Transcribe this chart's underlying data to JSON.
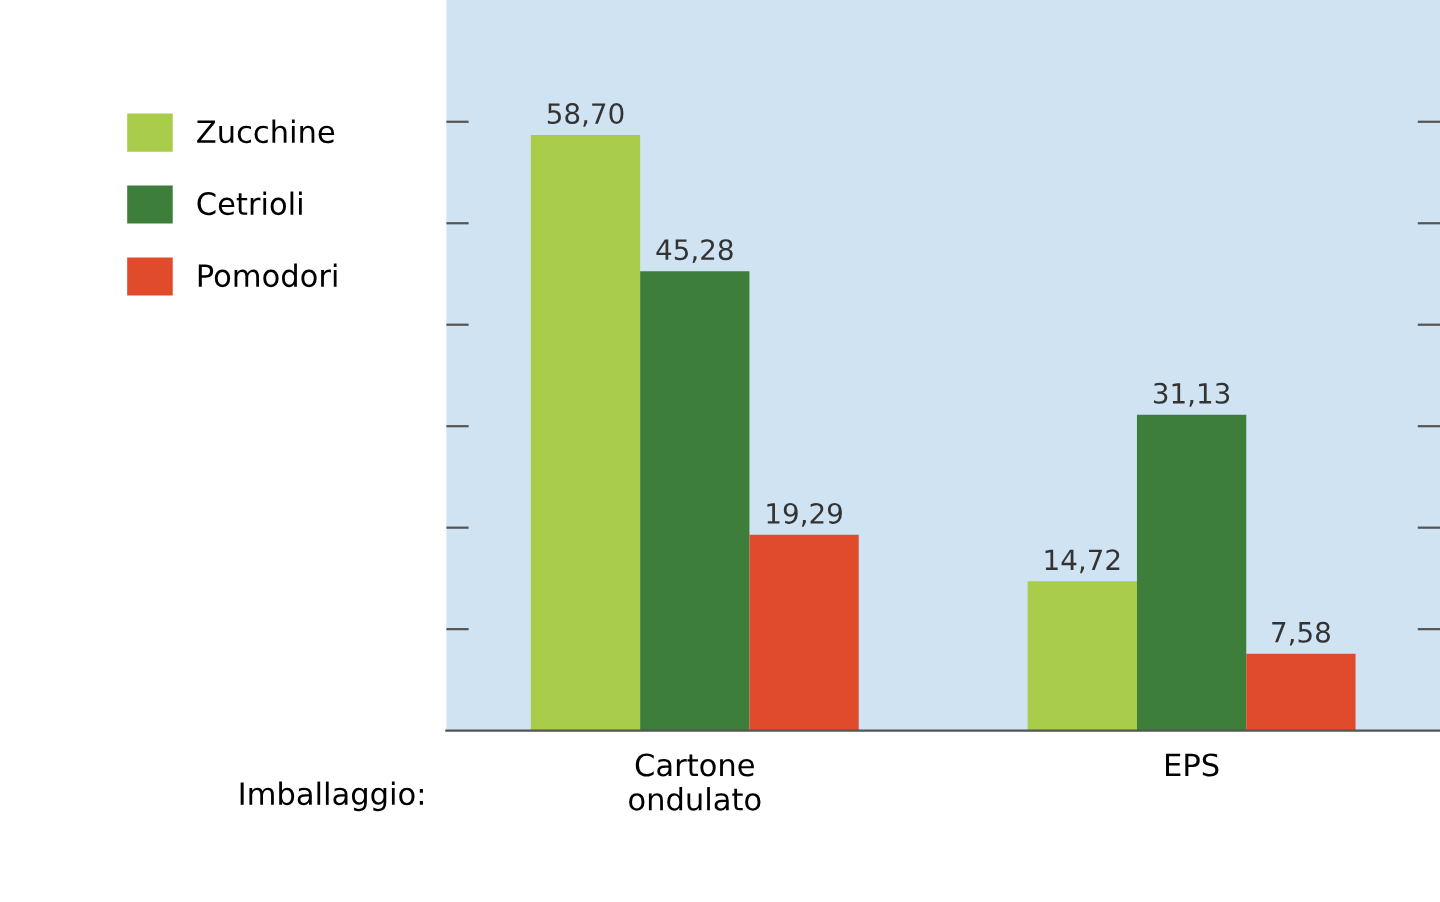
{
  "chart_data": {
    "type": "bar",
    "xlabel": "Imballaggio:",
    "categories": [
      "Cartone\nondulato",
      "EPS"
    ],
    "series": [
      {
        "name": "Zucchine",
        "color": "#a9cd4a",
        "values": [
          58.7,
          14.72
        ],
        "value_labels": [
          "58,70",
          "14,72"
        ]
      },
      {
        "name": "Cetrioli",
        "color": "#3d7f3a",
        "values": [
          45.28,
          31.13
        ],
        "value_labels": [
          "45,28",
          "31,13"
        ]
      },
      {
        "name": "Pomodori",
        "color": "#e04b2b",
        "values": [
          19.29,
          7.58
        ],
        "value_labels": [
          "19,29",
          "7,58"
        ]
      }
    ],
    "ylim": [
      0,
      72
    ],
    "yticks": [
      {
        "value": 10,
        "label": null
      },
      {
        "value": 20,
        "label": null
      },
      {
        "value": 30,
        "label": null
      },
      {
        "value": 40,
        "label": null
      },
      {
        "value": 50,
        "label": null
      },
      {
        "value": 60,
        "label": null
      }
    ],
    "tick_labels": "x",
    "grid": false,
    "legend": "left"
  }
}
